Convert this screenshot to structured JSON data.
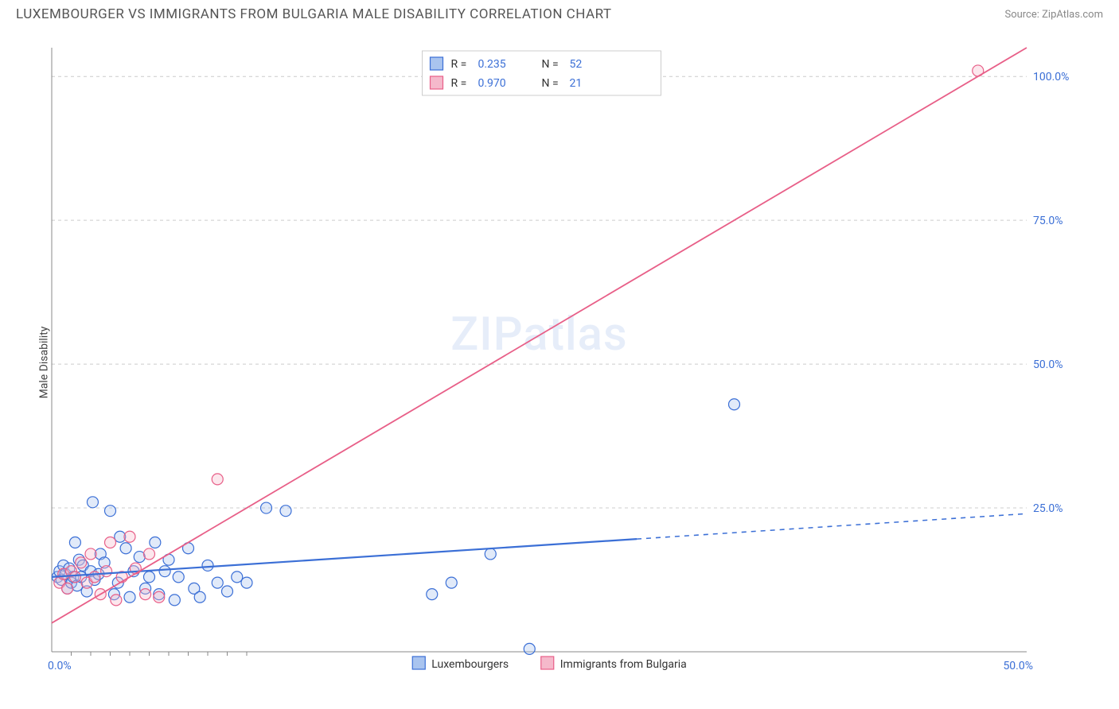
{
  "header": {
    "title": "LUXEMBOURGER VS IMMIGRANTS FROM BULGARIA MALE DISABILITY CORRELATION CHART",
    "source": "Source: ZipAtlas.com"
  },
  "ylabel": "Male Disability",
  "watermark": "ZIPatlas",
  "chart": {
    "type": "scatter",
    "background_color": "#ffffff",
    "grid_color": "#cccccc",
    "axis_color": "#888888",
    "tick_color": "#3b6fd6",
    "xlim": [
      0,
      50
    ],
    "ylim": [
      0,
      105
    ],
    "xticks": [
      0,
      50
    ],
    "xtick_labels": [
      "0.0%",
      "50.0%"
    ],
    "yticks": [
      25,
      50,
      75,
      100
    ],
    "ytick_labels": [
      "25.0%",
      "50.0%",
      "75.0%",
      "100.0%"
    ],
    "marker_radius": 7,
    "marker_stroke_width": 1.2,
    "fill_opacity": 0.35,
    "series": [
      {
        "name": "Luxembourgers",
        "stroke": "#3b6fd6",
        "fill": "#a9c4ef",
        "R": "0.235",
        "N": "52",
        "trend": {
          "slope": 0.22,
          "intercept": 13,
          "solid_xmax": 30,
          "dash_xmax": 50,
          "stroke_width": 2.2
        },
        "points": [
          [
            0.3,
            13
          ],
          [
            0.4,
            14
          ],
          [
            0.5,
            12.5
          ],
          [
            0.6,
            15
          ],
          [
            0.7,
            13.5
          ],
          [
            0.8,
            11
          ],
          [
            0.9,
            14.5
          ],
          [
            1.0,
            12
          ],
          [
            1.1,
            13
          ],
          [
            1.2,
            19
          ],
          [
            1.3,
            11.5
          ],
          [
            1.4,
            16
          ],
          [
            1.5,
            13
          ],
          [
            1.6,
            15
          ],
          [
            1.8,
            10.5
          ],
          [
            2.0,
            14
          ],
          [
            2.1,
            26
          ],
          [
            2.2,
            12.5
          ],
          [
            2.4,
            13.5
          ],
          [
            2.5,
            17
          ],
          [
            2.7,
            15.5
          ],
          [
            3.0,
            24.5
          ],
          [
            3.2,
            10
          ],
          [
            3.4,
            12
          ],
          [
            3.5,
            20
          ],
          [
            3.8,
            18
          ],
          [
            4.0,
            9.5
          ],
          [
            4.2,
            14
          ],
          [
            4.5,
            16.5
          ],
          [
            4.8,
            11
          ],
          [
            5.0,
            13
          ],
          [
            5.3,
            19
          ],
          [
            5.5,
            10
          ],
          [
            5.8,
            14
          ],
          [
            6.0,
            16
          ],
          [
            6.3,
            9
          ],
          [
            6.5,
            13
          ],
          [
            7.0,
            18
          ],
          [
            7.3,
            11
          ],
          [
            7.6,
            9.5
          ],
          [
            8.0,
            15
          ],
          [
            8.5,
            12
          ],
          [
            9.0,
            10.5
          ],
          [
            9.5,
            13
          ],
          [
            10.0,
            12
          ],
          [
            11.0,
            25
          ],
          [
            12.0,
            24.5
          ],
          [
            19.5,
            10
          ],
          [
            20.5,
            12
          ],
          [
            22.5,
            17
          ],
          [
            24.5,
            0.5
          ],
          [
            35.0,
            43
          ]
        ]
      },
      {
        "name": "Immigrants from Bulgaria",
        "stroke": "#e85f88",
        "fill": "#f5b9cb",
        "R": "0.970",
        "N": "21",
        "trend": {
          "slope": 2.0,
          "intercept": 5,
          "solid_xmax": 50,
          "dash_xmax": 50,
          "stroke_width": 1.8
        },
        "points": [
          [
            0.4,
            12
          ],
          [
            0.6,
            13.5
          ],
          [
            0.8,
            11
          ],
          [
            1.0,
            14
          ],
          [
            1.2,
            13
          ],
          [
            1.5,
            15.5
          ],
          [
            1.8,
            12
          ],
          [
            2.0,
            17
          ],
          [
            2.2,
            13
          ],
          [
            2.5,
            10
          ],
          [
            2.8,
            14
          ],
          [
            3.0,
            19
          ],
          [
            3.3,
            9
          ],
          [
            3.6,
            13
          ],
          [
            4.0,
            20
          ],
          [
            4.3,
            14.5
          ],
          [
            4.8,
            10
          ],
          [
            5.0,
            17
          ],
          [
            5.5,
            9.5
          ],
          [
            8.5,
            30
          ],
          [
            47.5,
            101
          ]
        ]
      }
    ]
  },
  "legend_top": {
    "rows": [
      {
        "swatch_fill": "#a9c4ef",
        "swatch_stroke": "#3b6fd6",
        "r_label": "R =",
        "r_val": "0.235",
        "n_label": "N =",
        "n_val": "52"
      },
      {
        "swatch_fill": "#f5b9cb",
        "swatch_stroke": "#e85f88",
        "r_label": "R =",
        "r_val": "0.970",
        "n_label": "N =",
        "n_val": "21"
      }
    ]
  },
  "legend_bottom": {
    "items": [
      {
        "swatch_fill": "#a9c4ef",
        "swatch_stroke": "#3b6fd6",
        "label": "Luxembourgers"
      },
      {
        "swatch_fill": "#f5b9cb",
        "swatch_stroke": "#e85f88",
        "label": "Immigrants from Bulgaria"
      }
    ]
  }
}
